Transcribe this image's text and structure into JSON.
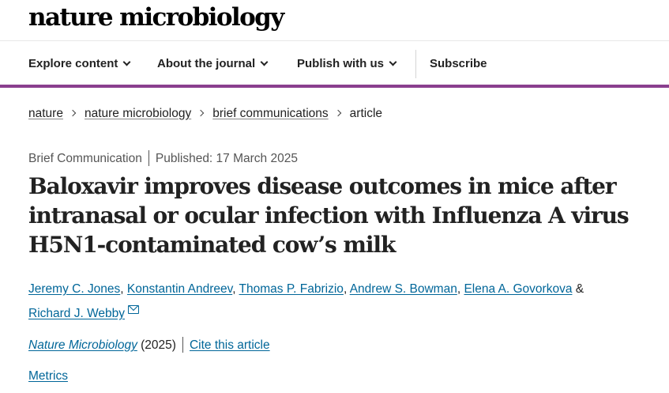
{
  "site": {
    "logo": "nature microbiology"
  },
  "nav": {
    "items": [
      {
        "label": "Explore content",
        "has_dropdown": true
      },
      {
        "label": "About the journal",
        "has_dropdown": true
      },
      {
        "label": "Publish with us",
        "has_dropdown": true
      },
      {
        "label": "Subscribe",
        "has_dropdown": false
      }
    ],
    "accent_color": "#8a3f8e"
  },
  "breadcrumb": {
    "items": [
      "nature",
      "nature microbiology",
      "brief communications"
    ],
    "current": "article"
  },
  "article": {
    "type": "Brief Communication",
    "published": "Published: 17 March 2025",
    "title": "Baloxavir improves disease outcomes in mice after intranasal or ocular infection with Influenza A virus H5N1-contaminated cow’s milk",
    "authors": [
      "Jeremy C. Jones",
      "Konstantin Andreev",
      "Thomas P. Fabrizio",
      "Andrew S. Bowman",
      "Elena A. Govorkova",
      "Richard J. Webby"
    ],
    "author_separator": ", ",
    "author_ampersand": " & ",
    "contact_icon": "mail-icon",
    "journal": "Nature Microbiology",
    "year": " (2025)",
    "cite_label": "Cite this article",
    "metrics_label": "Metrics",
    "link_color": "#006699"
  }
}
